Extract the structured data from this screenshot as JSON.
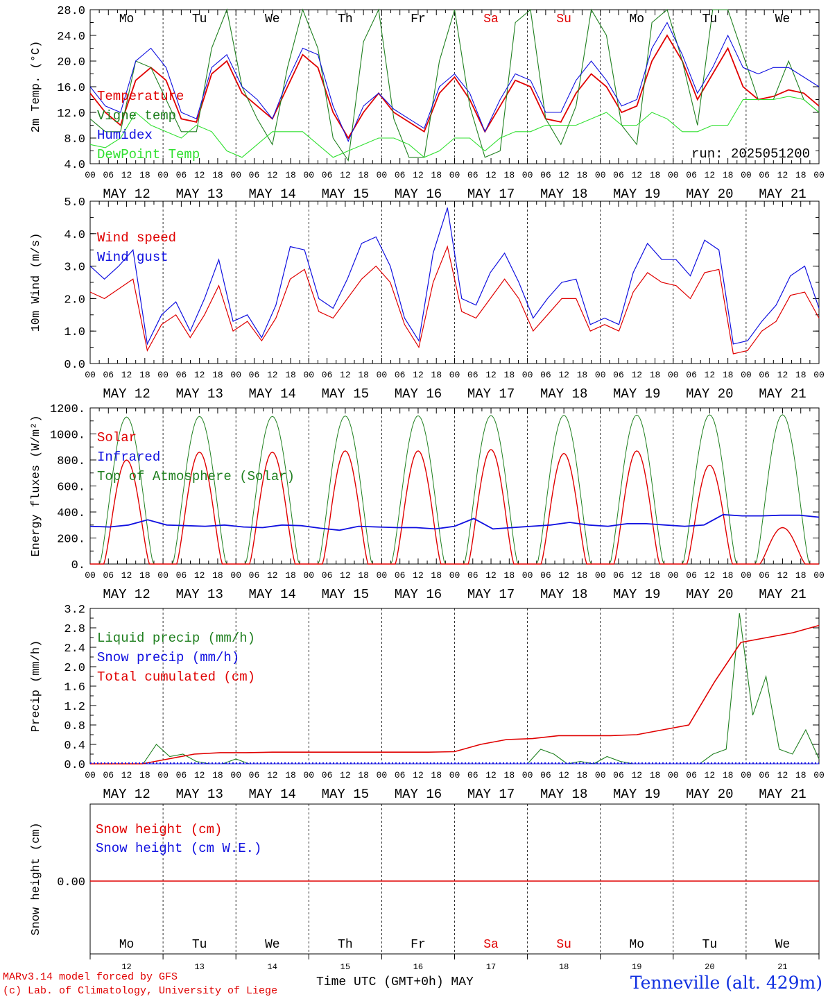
{
  "days": [
    "Mo",
    "Tu",
    "We",
    "Th",
    "Fr",
    "Sa",
    "Su",
    "Mo",
    "Tu",
    "We"
  ],
  "weekend_days": [
    5,
    6
  ],
  "dates": [
    "MAY 12",
    "MAY 13",
    "MAY 14",
    "MAY 15",
    "MAY 16",
    "MAY 17",
    "MAY 18",
    "MAY 19",
    "MAY 20",
    "MAY 21"
  ],
  "day_numbers": [
    "12",
    "13",
    "14",
    "15",
    "16",
    "17",
    "18",
    "19",
    "20",
    "21"
  ],
  "hour_ticks": [
    "00",
    "06",
    "12",
    "18"
  ],
  "run_label": "run: 2025051200",
  "x_title": "Time UTC (GMT+0h) MAY",
  "station": "Tenneville (alt. 429m)",
  "credits": [
    "MARv3.14 model forced by GFS",
    "(c) Lab. of Climatology, University of Liege"
  ],
  "colors": {
    "red": "#e00000",
    "blue": "#1010e0",
    "green": "#208020",
    "lightgreen": "#30e030",
    "text": "#000000"
  },
  "chart_data": [
    {
      "type": "line",
      "ylabel": "2m Temp. (°C)",
      "ylim": [
        4,
        28
      ],
      "yticks": [
        "4.0",
        "8.0",
        "12.0",
        "16.0",
        "20.0",
        "24.0",
        "28.0"
      ],
      "series": [
        {
          "name": "Temperature",
          "color": "red",
          "values": [
            15,
            12,
            10,
            17,
            19,
            17,
            11,
            10.5,
            18,
            20,
            15,
            13,
            11,
            16,
            21,
            19,
            12,
            8,
            12,
            15,
            12,
            10.5,
            9,
            15,
            17.5,
            14,
            9,
            13,
            17,
            16,
            11,
            10.5,
            15,
            18,
            16,
            12,
            13,
            20,
            24,
            20,
            14,
            18,
            22,
            16,
            14,
            14.5,
            15.5,
            15,
            13
          ]
        },
        {
          "name": "Vigne temp",
          "color": "green",
          "values": [
            11,
            9,
            9,
            20,
            19,
            14,
            9,
            9,
            22,
            28,
            16,
            11,
            7,
            19,
            28,
            22,
            8,
            4.5,
            23,
            28,
            11,
            5,
            5,
            20,
            28,
            13,
            5,
            6,
            26,
            28,
            11,
            7,
            13,
            28,
            24,
            10,
            7,
            26,
            28,
            20,
            10,
            28,
            28,
            21,
            14,
            14,
            20,
            14,
            12
          ]
        },
        {
          "name": "Humidex",
          "color": "blue",
          "values": [
            16,
            13,
            12,
            20,
            22,
            19,
            12,
            11,
            19,
            21,
            16,
            14,
            11,
            17,
            22,
            21,
            13,
            7.5,
            13,
            15,
            12.5,
            11,
            9.5,
            16,
            18,
            15,
            9,
            14,
            18,
            17,
            12,
            12,
            17,
            20,
            17,
            13,
            14,
            22,
            26,
            21,
            15,
            19,
            24,
            19,
            18,
            19,
            19,
            17.5,
            16
          ]
        },
        {
          "name": "DewPoint Temp",
          "color": "lightgreen",
          "values": [
            7,
            6.5,
            8,
            12,
            10,
            9,
            8,
            10,
            9,
            6,
            5,
            7,
            9,
            9,
            9,
            7,
            5,
            6,
            7,
            8,
            8,
            7,
            5,
            6,
            8,
            8,
            6,
            8,
            9,
            9,
            10,
            10,
            10,
            11,
            12,
            10,
            10,
            12,
            11,
            9,
            9,
            10,
            10,
            14,
            14,
            14,
            14.5,
            14,
            12
          ]
        }
      ]
    },
    {
      "type": "line",
      "ylabel": "10m Wind (m/s)",
      "ylim": [
        0,
        5
      ],
      "yticks": [
        "0.0",
        "1.0",
        "2.0",
        "3.0",
        "4.0",
        "5.0"
      ],
      "series": [
        {
          "name": "Wind speed",
          "color": "red",
          "values": [
            2.2,
            2.0,
            2.3,
            2.6,
            0.4,
            1.2,
            1.5,
            0.8,
            1.5,
            2.4,
            1.0,
            1.3,
            0.7,
            1.4,
            2.6,
            2.9,
            1.6,
            1.4,
            2.0,
            2.6,
            3.0,
            2.5,
            1.2,
            0.5,
            2.5,
            3.6,
            1.6,
            1.4,
            2.0,
            2.6,
            2.0,
            1.0,
            1.5,
            2.0,
            2.0,
            1.0,
            1.2,
            1.0,
            2.2,
            2.8,
            2.5,
            2.4,
            2.0,
            2.8,
            2.9,
            0.3,
            0.4,
            1.0,
            1.3,
            2.1,
            2.2,
            1.4
          ]
        },
        {
          "name": "Wind gust",
          "color": "blue",
          "values": [
            3.0,
            2.6,
            3.0,
            3.5,
            0.6,
            1.5,
            1.9,
            1.0,
            2.0,
            3.2,
            1.3,
            1.5,
            0.8,
            1.8,
            3.6,
            3.5,
            2.0,
            1.7,
            2.6,
            3.7,
            3.9,
            3.0,
            1.4,
            0.7,
            3.4,
            4.8,
            2.0,
            1.8,
            2.8,
            3.4,
            2.5,
            1.4,
            2.0,
            2.5,
            2.6,
            1.2,
            1.4,
            1.2,
            2.8,
            3.7,
            3.2,
            3.2,
            2.7,
            3.8,
            3.5,
            0.6,
            0.7,
            1.3,
            1.8,
            2.7,
            3.0,
            1.7
          ]
        }
      ]
    },
    {
      "type": "line",
      "ylabel": "Energy fluxes (W/m²)",
      "ylim": [
        0,
        1200
      ],
      "yticks": [
        "0.",
        "200.",
        "400.",
        "600.",
        "800.",
        "1000.",
        "1200."
      ],
      "series": [
        {
          "name": "Solar",
          "color": "red",
          "day_peaks": [
            800,
            860,
            860,
            870,
            870,
            880,
            850,
            870,
            760,
            280
          ]
        },
        {
          "name": "Infrared",
          "color": "blue",
          "values": [
            290,
            285,
            300,
            340,
            300,
            295,
            290,
            300,
            285,
            280,
            300,
            295,
            275,
            260,
            290,
            285,
            280,
            280,
            270,
            290,
            350,
            270,
            280,
            290,
            300,
            320,
            300,
            290,
            310,
            310,
            300,
            290,
            300,
            380,
            370,
            370,
            375,
            375,
            360
          ]
        },
        {
          "name": "Top of Atmosphere (Solar)",
          "color": "green",
          "day_peaks": [
            1130,
            1135,
            1135,
            1138,
            1140,
            1142,
            1143,
            1145,
            1147,
            1148
          ]
        }
      ]
    },
    {
      "type": "line",
      "ylabel": "Precip (mm/h)",
      "ylim": [
        0,
        3.2
      ],
      "yticks": [
        "0.0",
        "0.4",
        "0.8",
        "1.2",
        "1.6",
        "2.0",
        "2.4",
        "2.8",
        "3.2"
      ],
      "series": [
        {
          "name": "Liquid precip (mm/h)",
          "color": "green",
          "values": [
            0,
            0,
            0,
            0,
            0,
            0.4,
            0.15,
            0.2,
            0.05,
            0,
            0,
            0.1,
            0,
            0,
            0,
            0,
            0,
            0,
            0,
            0,
            0,
            0,
            0,
            0,
            0,
            0,
            0,
            0,
            0,
            0,
            0,
            0,
            0,
            0,
            0.3,
            0.2,
            0,
            0.05,
            0,
            0.15,
            0.05,
            0,
            0,
            0,
            0,
            0,
            0,
            0.2,
            0.3,
            3.1,
            1.0,
            1.8,
            0.3,
            0.2,
            0.7,
            0.1
          ]
        },
        {
          "name": "Snow precip (mm/h)",
          "color": "blue",
          "values": [
            0,
            0,
            0,
            0,
            0,
            0,
            0,
            0,
            0,
            0
          ]
        },
        {
          "name": "Total cumulated (cm)",
          "color": "red",
          "values": [
            0,
            0,
            0,
            0.1,
            0.2,
            0.23,
            0.23,
            0.24,
            0.24,
            0.24,
            0.24,
            0.24,
            0.24,
            0.24,
            0.25,
            0.4,
            0.5,
            0.52,
            0.58,
            0.58,
            0.58,
            0.6,
            0.7,
            0.8,
            1.7,
            2.5,
            2.6,
            2.7,
            2.85
          ]
        }
      ]
    },
    {
      "type": "line",
      "ylabel": "Snow height (cm)",
      "yticks": [
        "0.00"
      ],
      "series": [
        {
          "name": "Snow height (cm)",
          "color": "red",
          "values": [
            0,
            0
          ]
        },
        {
          "name": "Snow height (cm W.E.)",
          "color": "blue",
          "values": [
            0,
            0
          ]
        }
      ]
    }
  ]
}
